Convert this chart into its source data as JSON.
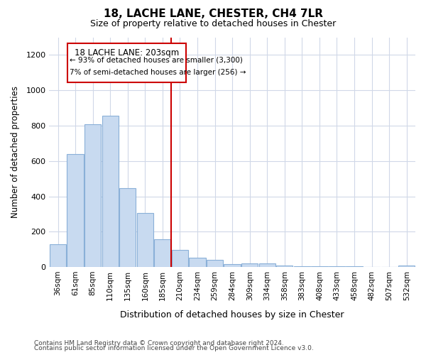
{
  "title": "18, LACHE LANE, CHESTER, CH4 7LR",
  "subtitle": "Size of property relative to detached houses in Chester",
  "xlabel": "Distribution of detached houses by size in Chester",
  "ylabel": "Number of detached properties",
  "bar_color": "#c8daf0",
  "bar_edge_color": "#8ab0d8",
  "categories": [
    "36sqm",
    "61sqm",
    "85sqm",
    "110sqm",
    "135sqm",
    "160sqm",
    "185sqm",
    "210sqm",
    "234sqm",
    "259sqm",
    "284sqm",
    "309sqm",
    "334sqm",
    "358sqm",
    "383sqm",
    "408sqm",
    "433sqm",
    "458sqm",
    "482sqm",
    "507sqm",
    "532sqm"
  ],
  "values": [
    130,
    638,
    807,
    858,
    445,
    305,
    157,
    95,
    52,
    40,
    18,
    20,
    20,
    10,
    5,
    5,
    3,
    3,
    0,
    0,
    8
  ],
  "ylim": [
    0,
    1300
  ],
  "yticks": [
    0,
    200,
    400,
    600,
    800,
    1000,
    1200
  ],
  "vline_index": 7,
  "property_line_label": "18 LACHE LANE: 203sqm",
  "annotation_line1": "← 93% of detached houses are smaller (3,300)",
  "annotation_line2": "7% of semi-detached houses are larger (256) →",
  "vline_color": "#cc0000",
  "annotation_box_color": "#cc0000",
  "footer_line1": "Contains HM Land Registry data © Crown copyright and database right 2024.",
  "footer_line2": "Contains public sector information licensed under the Open Government Licence v3.0.",
  "background_color": "#ffffff",
  "grid_color": "#d0d8e8"
}
